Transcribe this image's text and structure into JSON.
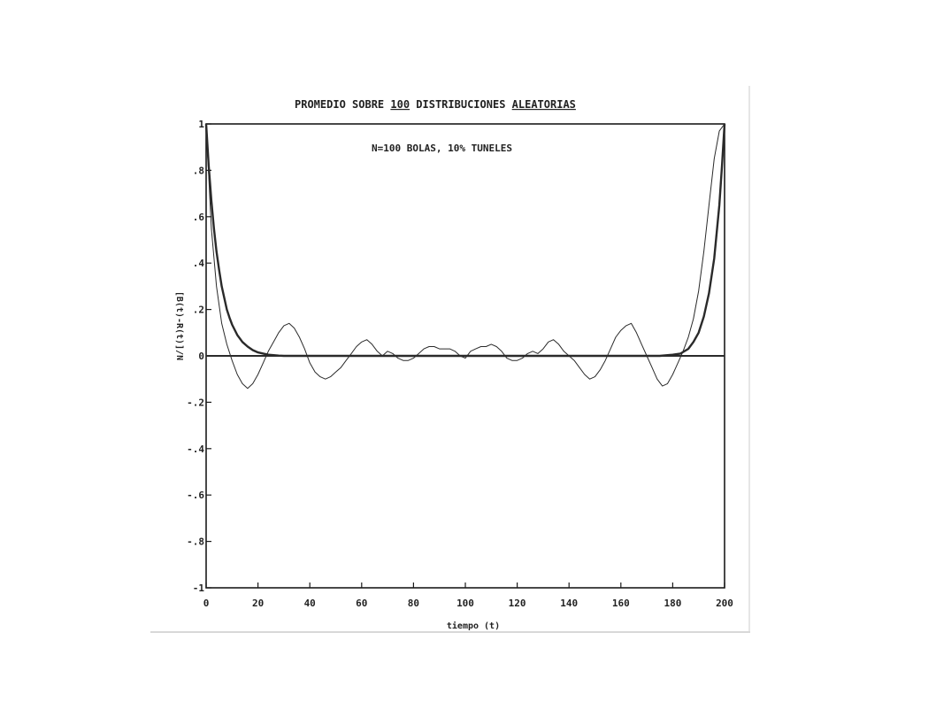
{
  "chart_data": {
    "type": "line",
    "title": "PROMEDIO SOBRE 100 DISTRIBUCIONES ALEATORIAS",
    "title_parts": [
      "PROMEDIO SOBRE ",
      "100",
      " DISTRIBUCIONES ",
      "ALEATORIAS"
    ],
    "annotation": "N=100 BOLAS, 10% TUNELES",
    "xlabel": "tiempo (t)",
    "ylabel": "[B(t)-R(t)]/N",
    "xlim": [
      0,
      200
    ],
    "ylim": [
      -1,
      1
    ],
    "grid": false,
    "x_ticks": [
      0,
      20,
      40,
      60,
      80,
      100,
      120,
      140,
      160,
      180,
      200
    ],
    "x_tick_labels": [
      "0",
      "20",
      "40",
      "60",
      "80",
      "100",
      "120",
      "140",
      "160",
      "180",
      "200"
    ],
    "y_ticks": [
      1,
      0.8,
      0.6,
      0.4,
      0.2,
      0,
      -0.2,
      -0.4,
      -0.6,
      -0.8,
      -1
    ],
    "y_tick_labels": [
      "1",
      ".8",
      ".6",
      ".4",
      ".2",
      "0",
      "-.2",
      "-.4",
      "-.6",
      "-.8",
      "-1"
    ],
    "colors": {
      "line": "#2a2a2a",
      "frame": "#1a1a1a"
    },
    "series": [
      {
        "style": "thin",
        "x": [
          0,
          2,
          4,
          6,
          8,
          10,
          12,
          14,
          16,
          18,
          20,
          22,
          24,
          26,
          28,
          30,
          32,
          34,
          36,
          38,
          40,
          42,
          44,
          46,
          48,
          50,
          52,
          54,
          56,
          58,
          60,
          62,
          64,
          66,
          68,
          70,
          72,
          74,
          76,
          78,
          80,
          82,
          84,
          86,
          88,
          90,
          92,
          94,
          96,
          98,
          100,
          102,
          104,
          106,
          108,
          110,
          112,
          114,
          116,
          118,
          120,
          122,
          124,
          126,
          128,
          130,
          132,
          134,
          136,
          138,
          140,
          142,
          144,
          146,
          148,
          150,
          152,
          154,
          156,
          158,
          160,
          162,
          164,
          166,
          168,
          170,
          172,
          174,
          176,
          178,
          180,
          182,
          184,
          186,
          188,
          190,
          192,
          194,
          196,
          198,
          200
        ],
        "y": [
          1.0,
          0.55,
          0.3,
          0.14,
          0.05,
          -0.02,
          -0.08,
          -0.12,
          -0.14,
          -0.12,
          -0.08,
          -0.03,
          0.02,
          0.06,
          0.1,
          0.13,
          0.14,
          0.12,
          0.08,
          0.03,
          -0.03,
          -0.07,
          -0.09,
          -0.1,
          -0.09,
          -0.07,
          -0.05,
          -0.02,
          0.01,
          0.04,
          0.06,
          0.07,
          0.05,
          0.02,
          0.0,
          0.02,
          0.01,
          -0.01,
          -0.02,
          -0.02,
          -0.01,
          0.01,
          0.03,
          0.04,
          0.04,
          0.03,
          0.03,
          0.03,
          0.02,
          0.0,
          -0.01,
          0.02,
          0.03,
          0.04,
          0.04,
          0.05,
          0.04,
          0.02,
          -0.01,
          -0.02,
          -0.02,
          -0.01,
          0.01,
          0.02,
          0.01,
          0.03,
          0.06,
          0.07,
          0.05,
          0.02,
          0.0,
          -0.02,
          -0.05,
          -0.08,
          -0.1,
          -0.09,
          -0.06,
          -0.02,
          0.03,
          0.08,
          0.11,
          0.13,
          0.14,
          0.1,
          0.05,
          0.0,
          -0.05,
          -0.1,
          -0.13,
          -0.12,
          -0.08,
          -0.03,
          0.02,
          0.08,
          0.16,
          0.28,
          0.45,
          0.65,
          0.85,
          0.97,
          1.0
        ]
      },
      {
        "style": "thick",
        "x": [
          0,
          1,
          2,
          3,
          4,
          5,
          6,
          7,
          8,
          9,
          10,
          12,
          14,
          16,
          18,
          20,
          22,
          24,
          26,
          28,
          30,
          40,
          60,
          80,
          100,
          120,
          140,
          160,
          170,
          175,
          180,
          183,
          186,
          188,
          190,
          192,
          194,
          196,
          198,
          199,
          200
        ],
        "y": [
          1.0,
          0.82,
          0.67,
          0.55,
          0.45,
          0.37,
          0.3,
          0.25,
          0.2,
          0.165,
          0.135,
          0.09,
          0.06,
          0.04,
          0.025,
          0.015,
          0.01,
          0.005,
          0.003,
          0.001,
          0.0,
          0.0,
          0.0,
          0.0,
          0.0,
          0.0,
          0.0,
          0.0,
          0.0,
          0.0,
          0.005,
          0.01,
          0.03,
          0.06,
          0.1,
          0.17,
          0.27,
          0.42,
          0.65,
          0.82,
          1.0
        ]
      }
    ]
  }
}
